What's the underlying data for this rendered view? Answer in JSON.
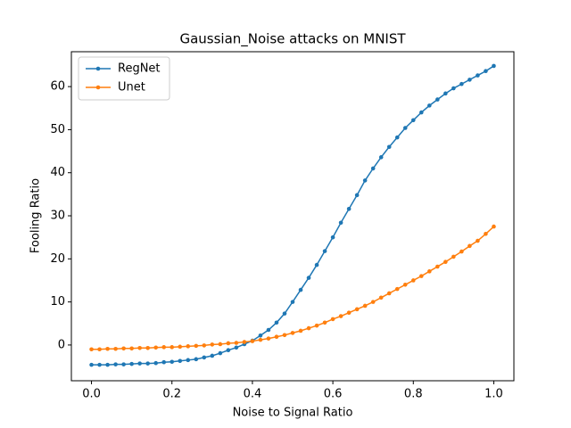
{
  "chart_data": {
    "type": "line",
    "title": "Gaussian_Noise attacks on MNIST",
    "xlabel": "Noise to Signal Ratio",
    "ylabel": "Fooling Ratio",
    "x": [
      0,
      0.02,
      0.04,
      0.06,
      0.08,
      0.1,
      0.12,
      0.14,
      0.16,
      0.18,
      0.2,
      0.22,
      0.24,
      0.26,
      0.28,
      0.3,
      0.32,
      0.34,
      0.36,
      0.38,
      0.4,
      0.42,
      0.44,
      0.46,
      0.48,
      0.5,
      0.52,
      0.54,
      0.56,
      0.58,
      0.6,
      0.62,
      0.64,
      0.66,
      0.68,
      0.7,
      0.72,
      0.74,
      0.76,
      0.78,
      0.8,
      0.82,
      0.84,
      0.86,
      0.88,
      0.9,
      0.92,
      0.94,
      0.96,
      0.98,
      1.0
    ],
    "series": [
      {
        "name": "RegNet",
        "color": "#1f77b4",
        "values": [
          -4.6,
          -4.6,
          -4.6,
          -4.5,
          -4.5,
          -4.4,
          -4.3,
          -4.3,
          -4.2,
          -4.0,
          -3.9,
          -3.7,
          -3.5,
          -3.3,
          -2.9,
          -2.5,
          -1.9,
          -1.2,
          -0.6,
          0.2,
          1.0,
          2.2,
          3.5,
          5.2,
          7.3,
          10.0,
          12.8,
          15.6,
          18.6,
          21.8,
          25.0,
          28.4,
          31.6,
          34.8,
          38.2,
          41.0,
          43.6,
          46.0,
          48.2,
          50.4,
          52.2,
          54.0,
          55.6,
          57.0,
          58.4,
          59.6,
          60.6,
          61.6,
          62.6,
          63.6,
          64.8
        ]
      },
      {
        "name": "Unet",
        "color": "#ff7f0e",
        "values": [
          -1.0,
          -1.0,
          -0.9,
          -0.9,
          -0.8,
          -0.8,
          -0.7,
          -0.7,
          -0.6,
          -0.5,
          -0.5,
          -0.4,
          -0.3,
          -0.2,
          -0.1,
          0.1,
          0.2,
          0.4,
          0.5,
          0.7,
          0.9,
          1.2,
          1.5,
          1.9,
          2.3,
          2.8,
          3.3,
          3.9,
          4.5,
          5.2,
          6.0,
          6.7,
          7.5,
          8.3,
          9.1,
          10.0,
          11.0,
          12.0,
          13.0,
          14.0,
          15.0,
          16.0,
          17.1,
          18.2,
          19.3,
          20.5,
          21.7,
          23.0,
          24.2,
          25.8,
          27.5
        ]
      }
    ],
    "xlim": [
      -0.05,
      1.05
    ],
    "ylim": [
      -8.3,
      68.1
    ],
    "xticks": [
      {
        "value": 0,
        "label": "0.0"
      },
      0.2,
      0.4,
      0.6,
      0.8,
      {
        "value": 1,
        "label": "1.0"
      }
    ],
    "yticks": [
      0,
      10,
      20,
      30,
      40,
      50,
      60
    ],
    "legend": "upper left"
  }
}
